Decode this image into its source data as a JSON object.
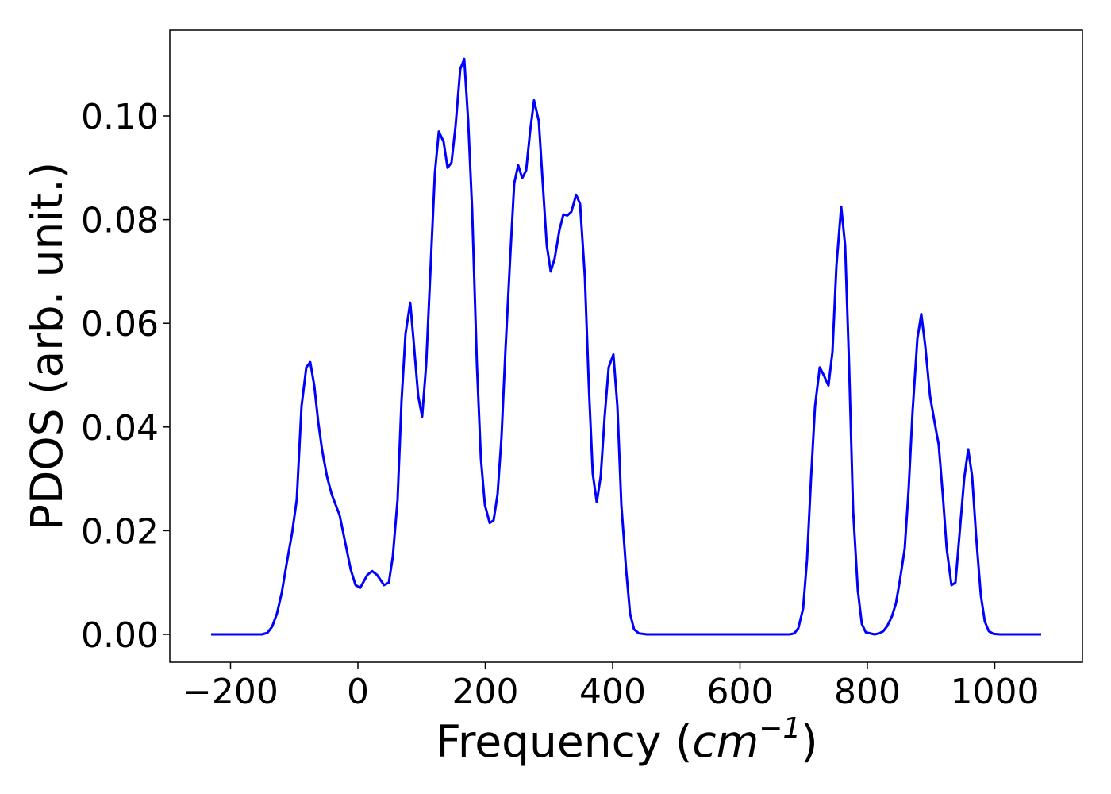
{
  "chart_data": {
    "type": "line",
    "xlabel": [
      "Frequency (",
      "cm",
      "−1",
      ")"
    ],
    "ylabel": "PDOS (arb. unit.)",
    "color": "#0000ff",
    "xlim": [
      -295.3,
      1137.7
    ],
    "ylim": [
      -0.00536,
      0.11654
    ],
    "xticks": [
      {
        "value": -200,
        "label": "−200"
      },
      0,
      200,
      400,
      600,
      800,
      1000
    ],
    "yticks": [
      {
        "value": 0,
        "label": "0.00"
      },
      {
        "value": 0.02,
        "label": "0.02"
      },
      {
        "value": 0.04,
        "label": "0.04"
      },
      {
        "value": 0.06,
        "label": "0.06"
      },
      {
        "value": 0.08,
        "label": "0.08"
      },
      {
        "value": 0.1,
        "label": "0.10"
      }
    ],
    "x": [
      -230.5,
      -150.8,
      -142.1,
      -134.6,
      -127.1,
      -119.6,
      -112.1,
      -103.4,
      -96.0,
      -88.5,
      -81.0,
      -74.8,
      -68.5,
      -62.3,
      -56.1,
      -48.6,
      -41.1,
      -28.7,
      -18.7,
      -11.2,
      -3.7,
      3.7,
      15.0,
      22.4,
      29.9,
      41.1,
      48.6,
      54.8,
      62.3,
      68.5,
      74.8,
      82.2,
      87.2,
      94.7,
      100.9,
      107.2,
      114.6,
      120.9,
      127.1,
      134.6,
      140.8,
      147.0,
      153.3,
      160.7,
      167.0,
      173.2,
      179.4,
      186.9,
      193.1,
      199.4,
      206.9,
      213.1,
      219.3,
      225.5,
      231.8,
      239.3,
      245.5,
      251.7,
      258.0,
      264.2,
      270.4,
      276.6,
      284.1,
      290.3,
      296.6,
      302.8,
      309.0,
      316.5,
      322.7,
      329.0,
      335.2,
      342.7,
      348.9,
      356.4,
      362.6,
      368.8,
      375.1,
      381.3,
      387.5,
      393.8,
      401.2,
      407.5,
      413.7,
      421.2,
      427.4,
      433.6,
      441.1,
      453.6,
      677.9,
      685.4,
      691.6,
      699.1,
      705.3,
      711.5,
      717.8,
      725.2,
      731.5,
      738.9,
      745.2,
      751.4,
      758.9,
      765.1,
      771.3,
      777.6,
      785.0,
      791.3,
      797.5,
      811.2,
      818.7,
      824.9,
      831.2,
      838.6,
      844.9,
      851.1,
      858.6,
      864.8,
      871.0,
      878.5,
      884.7,
      891.0,
      898.4,
      904.7,
      912.1,
      918.4,
      924.6,
      932.1,
      938.3,
      944.5,
      952.0,
      958.3,
      964.5,
      970.7,
      978.2,
      984.4,
      990.7,
      998.1,
      1008.1,
      1072.9
    ],
    "values": [
      0,
      0,
      0.0003,
      0.0015,
      0.004,
      0.008,
      0.0135,
      0.0195,
      0.026,
      0.044,
      0.0515,
      0.0525,
      0.048,
      0.041,
      0.0355,
      0.0305,
      0.027,
      0.023,
      0.017,
      0.0125,
      0.0095,
      0.009,
      0.0115,
      0.0122,
      0.0115,
      0.0095,
      0.01,
      0.015,
      0.026,
      0.045,
      0.058,
      0.064,
      0.057,
      0.046,
      0.042,
      0.052,
      0.072,
      0.089,
      0.097,
      0.095,
      0.09,
      0.091,
      0.098,
      0.109,
      0.111,
      0.099,
      0.082,
      0.052,
      0.034,
      0.025,
      0.0215,
      0.022,
      0.027,
      0.038,
      0.055,
      0.073,
      0.087,
      0.0905,
      0.088,
      0.0895,
      0.097,
      0.103,
      0.099,
      0.087,
      0.075,
      0.07,
      0.0725,
      0.078,
      0.081,
      0.0808,
      0.0815,
      0.0848,
      0.083,
      0.069,
      0.048,
      0.031,
      0.0255,
      0.0305,
      0.042,
      0.0515,
      0.054,
      0.044,
      0.025,
      0.0125,
      0.004,
      0.001,
      0.0002,
      0,
      0,
      0.0002,
      0.0012,
      0.005,
      0.0145,
      0.03,
      0.044,
      0.0515,
      0.05,
      0.048,
      0.0545,
      0.071,
      0.0825,
      0.075,
      0.052,
      0.024,
      0.0085,
      0.002,
      0.0004,
      0,
      0.0002,
      0.0006,
      0.0016,
      0.0035,
      0.006,
      0.0105,
      0.0165,
      0.028,
      0.043,
      0.057,
      0.0618,
      0.0555,
      0.046,
      0.0415,
      0.0365,
      0.027,
      0.0165,
      0.0095,
      0.01,
      0.019,
      0.03,
      0.0357,
      0.0305,
      0.019,
      0.0075,
      0.0025,
      0.0006,
      0.0001,
      0,
      0
    ]
  }
}
